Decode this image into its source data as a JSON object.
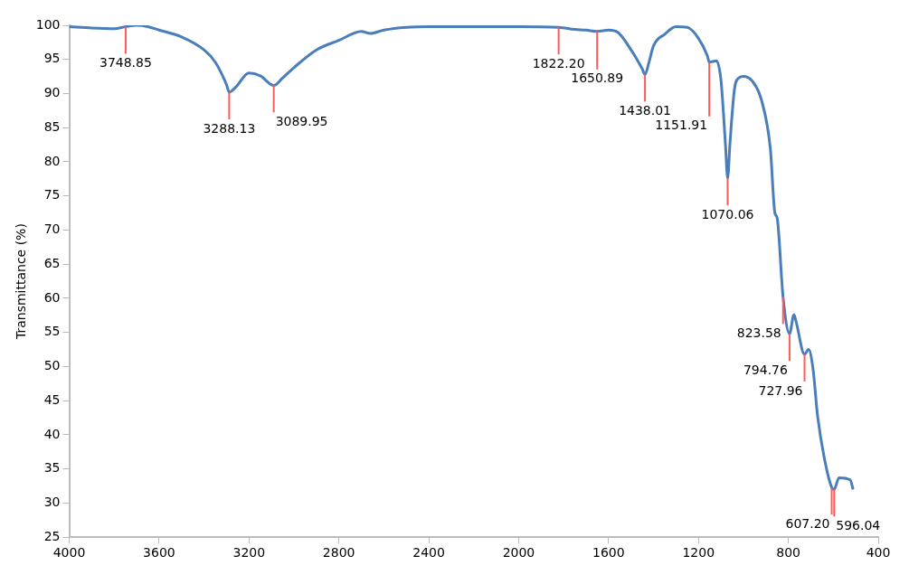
{
  "chart_data": {
    "type": "line",
    "ylabel": "Transmittance (%)",
    "xlim": [
      4000,
      400
    ],
    "xticks": [
      4000,
      3600,
      3200,
      2800,
      2400,
      2000,
      1600,
      1200,
      800,
      400
    ],
    "ylim": [
      25,
      100
    ],
    "yticks": [
      25,
      30,
      35,
      40,
      45,
      50,
      55,
      60,
      65,
      70,
      75,
      80,
      85,
      90,
      95,
      100
    ],
    "grid": false,
    "legend": false,
    "marker": "none",
    "line_style": "solid",
    "series": [
      {
        "color": "#4a7ebb",
        "x": [
          4000,
          3900,
          3800,
          3748.85,
          3700,
          3650,
          3600,
          3500,
          3400,
          3350,
          3300,
          3288.13,
          3260,
          3200,
          3150,
          3089.95,
          3050,
          3000,
          2900,
          2800,
          2700,
          2660,
          2600,
          2500,
          2400,
          2000,
          1822.2,
          1750,
          1700,
          1650.89,
          1600,
          1560,
          1500,
          1450,
          1438.01,
          1420,
          1400,
          1350,
          1300,
          1250,
          1200,
          1160,
          1151.91,
          1120,
          1100,
          1080,
          1070.06,
          1060,
          1040,
          1020,
          1000,
          960,
          920,
          880,
          860,
          850,
          823.58,
          794.76,
          775,
          765,
          727.96,
          710,
          690,
          670,
          640,
          607.2,
          596.04,
          575,
          525,
          512
        ],
        "values": [
          99.8,
          99.6,
          99.5,
          99.8,
          100,
          99.8,
          99.3,
          98.3,
          96.4,
          94.6,
          91.3,
          90.2,
          90.9,
          93,
          92.6,
          91.2,
          92.3,
          93.8,
          96.4,
          97.8,
          99.1,
          98.8,
          99.3,
          99.7,
          99.8,
          99.8,
          99.7,
          99.4,
          99.3,
          99.1,
          99.3,
          99,
          96.4,
          93.6,
          92.8,
          94.6,
          97,
          98.7,
          99.8,
          99.7,
          98.1,
          95.5,
          94.6,
          94.8,
          92,
          82.6,
          77.6,
          82.6,
          90.6,
          92.3,
          92.5,
          91.8,
          89.1,
          81.9,
          72.5,
          71.8,
          60.2,
          54.8,
          57.6,
          56.5,
          51.8,
          52.5,
          49.6,
          42.8,
          36.6,
          32.3,
          32,
          33.7,
          33.4,
          32
        ]
      }
    ],
    "annotations": [
      {
        "text": "3748.85",
        "x": 3748.85,
        "y": 99.8
      },
      {
        "text": "3288.13",
        "x": 3288.13,
        "y": 90.2
      },
      {
        "text": "3089.95",
        "x": 3089.95,
        "y": 91.2
      },
      {
        "text": "1822.20",
        "x": 1822.2,
        "y": 99.7
      },
      {
        "text": "1650.89",
        "x": 1650.89,
        "y": 99.1
      },
      {
        "text": "1438.01",
        "x": 1438.01,
        "y": 92.8
      },
      {
        "text": "1151.91",
        "x": 1151.91,
        "y": 94.6
      },
      {
        "text": "1070.06",
        "x": 1070.06,
        "y": 77.6
      },
      {
        "text": "823.58",
        "x": 823.58,
        "y": 60.2
      },
      {
        "text": "794.76",
        "x": 794.76,
        "y": 54.8
      },
      {
        "text": "727.96",
        "x": 727.96,
        "y": 51.8
      },
      {
        "text": "607.20",
        "x": 607.2,
        "y": 32.3
      },
      {
        "text": "596.04",
        "x": 596.04,
        "y": 32
      }
    ]
  }
}
